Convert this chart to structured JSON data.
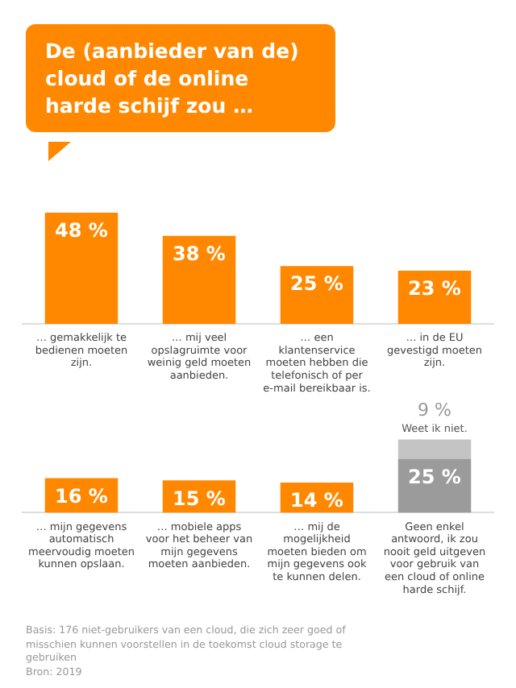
{
  "chart_data": [
    {
      "type": "bar",
      "title": "De (aanbieder van de) cloud of de online harde schijf zou …",
      "categories": [
        "… gemakkelijk te bedienen moeten zijn.",
        "… mij veel opslagruimte voor weinig geld moeten aanbieden.",
        "… een klantenservice moeten hebben die telefonisch of per e-mail bereikbaar is.",
        "… in de EU gevestigd moeten zijn."
      ],
      "series": [
        {
          "color": "#ff8800",
          "values": [
            48,
            38,
            25,
            23
          ],
          "value_labels": [
            "48 %",
            "38 %",
            "25 %",
            "23 %"
          ]
        }
      ]
    },
    {
      "type": "bar",
      "stacked": true,
      "categories": [
        "… mijn gegevens automatisch meervoudig moeten kunnen opslaan.",
        "… mobiele apps voor het beheer van mijn gegevens moeten aanbieden.",
        "… mij de mogelijkheid moeten bieden om mijn gegevens ook te kunnen delen.",
        "Geen enkel antwoord, ik zou nooit geld uitgeven voor gebruik van een cloud of online harde schijf."
      ],
      "series": [
        {
          "colors": [
            "#ff8800",
            "#ff8800",
            "#ff8800",
            "#9b9b9b"
          ],
          "values": [
            16,
            15,
            14,
            25
          ],
          "value_labels": [
            "16 %",
            "15 %",
            "14 %",
            "25 %"
          ]
        },
        {
          "name": "Weet ik niet.",
          "color": "#c4c4c4",
          "values": [
            null,
            null,
            null,
            9
          ],
          "value_labels": [
            null,
            null,
            null,
            "9 %"
          ]
        }
      ],
      "annotations": [
        "Basis: 176 niet-gebruikers van een cloud, die zich zeer goed of misschien kunnen voorstellen in de toekomst cloud storage te gebruiken",
        "Bron: 2019"
      ]
    }
  ]
}
